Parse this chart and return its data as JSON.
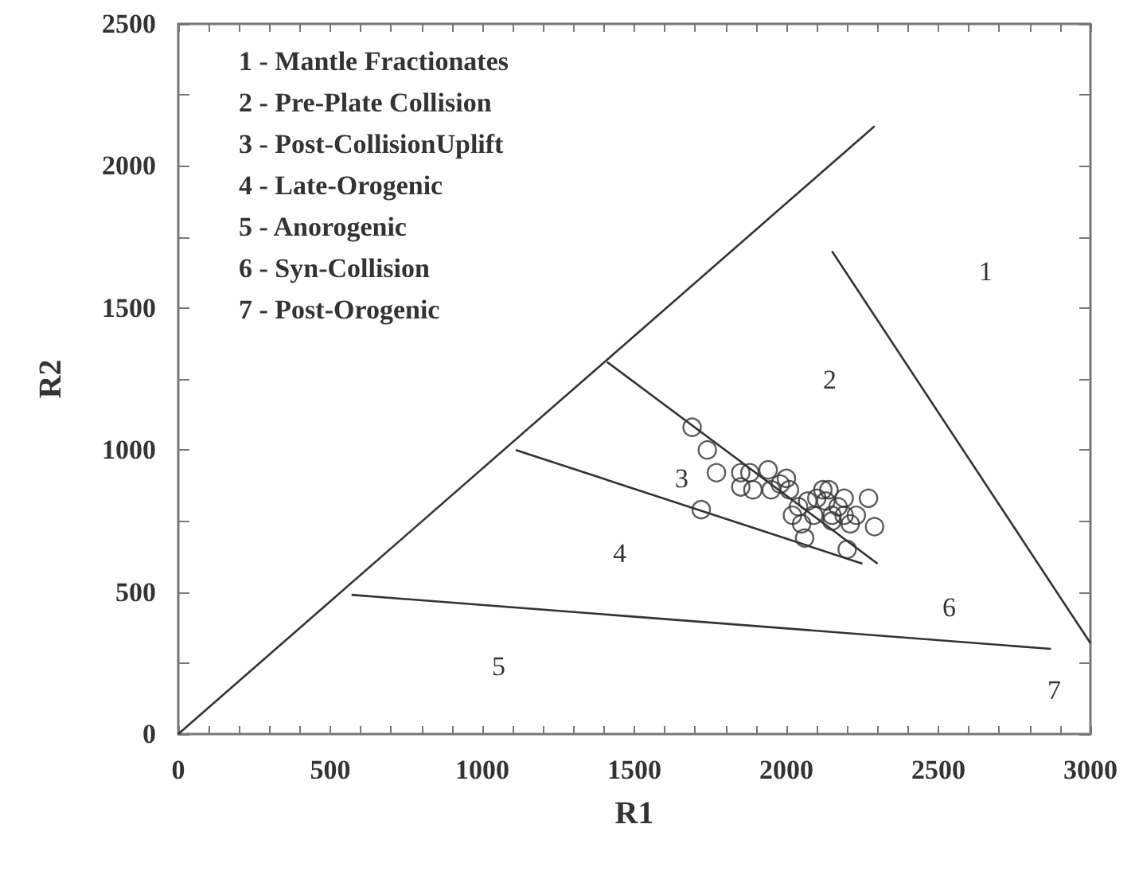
{
  "chart_data": {
    "type": "scatter",
    "xlabel": "R1",
    "ylabel": "R2",
    "xlim": [
      0,
      3000
    ],
    "ylim": [
      0,
      2500
    ],
    "xticks": [
      0,
      {
        "value": 100,
        "label": null
      },
      {
        "value": 200,
        "label": null
      },
      {
        "value": 300,
        "label": null
      },
      {
        "value": 400,
        "label": null
      },
      500,
      {
        "value": 600,
        "label": null
      },
      {
        "value": 700,
        "label": null
      },
      {
        "value": 800,
        "label": null
      },
      {
        "value": 900,
        "label": null
      },
      1000,
      {
        "value": 1100,
        "label": null
      },
      {
        "value": 1200,
        "label": null
      },
      {
        "value": 1300,
        "label": null
      },
      {
        "value": 1400,
        "label": null
      },
      1500,
      {
        "value": 1600,
        "label": null
      },
      {
        "value": 1700,
        "label": null
      },
      {
        "value": 1800,
        "label": null
      },
      {
        "value": 1900,
        "label": null
      },
      2000,
      {
        "value": 2100,
        "label": null
      },
      {
        "value": 2200,
        "label": null
      },
      {
        "value": 2300,
        "label": null
      },
      {
        "value": 2400,
        "label": null
      },
      2500,
      {
        "value": 2600,
        "label": null
      },
      {
        "value": 2700,
        "label": null
      },
      {
        "value": 2800,
        "label": null
      },
      {
        "value": 2900,
        "label": null
      },
      3000
    ],
    "yticks": [
      0,
      {
        "value": 250,
        "label": null
      },
      500,
      {
        "value": 750,
        "label": null
      },
      1000,
      {
        "value": 1250,
        "label": null
      },
      1500,
      {
        "value": 1750,
        "label": null
      },
      2000,
      {
        "value": 2250,
        "label": null
      },
      2500
    ],
    "marker": "circle",
    "series": [
      {
        "color": "#333333",
        "x": [
          1690,
          1740,
          1770,
          1850,
          1880,
          1940,
          2000,
          1850,
          1890,
          1950,
          1980,
          2010,
          1720,
          2020,
          2050,
          2060,
          2070,
          2100,
          2120,
          2140,
          2130,
          2150,
          2170,
          2190,
          2190,
          2210,
          2230,
          2270,
          2290,
          2200,
          2150,
          2040,
          2090
        ],
        "values": [
          1080,
          1000,
          920,
          920,
          920,
          930,
          900,
          870,
          860,
          860,
          880,
          860,
          790,
          770,
          740,
          690,
          820,
          830,
          860,
          860,
          820,
          770,
          800,
          830,
          770,
          740,
          770,
          830,
          730,
          650,
          750,
          800,
          770
        ]
      },
      {
        "type": "line",
        "color": "#333333",
        "marker": "none",
        "line_style": "solid",
        "x": [
          0,
          2290
        ],
        "values": [
          0,
          2140
        ]
      },
      {
        "type": "line",
        "color": "#333333",
        "marker": "none",
        "line_style": "solid",
        "x": [
          2150,
          3000
        ],
        "values": [
          1700,
          320
        ]
      },
      {
        "type": "line",
        "color": "#333333",
        "marker": "none",
        "line_style": "solid",
        "x": [
          1410,
          2300
        ],
        "values": [
          1310,
          600
        ]
      },
      {
        "type": "line",
        "color": "#333333",
        "marker": "none",
        "line_style": "solid",
        "x": [
          1110,
          2250
        ],
        "values": [
          1000,
          600
        ]
      },
      {
        "type": "line",
        "color": "#333333",
        "marker": "none",
        "line_style": "solid",
        "x": [
          570,
          2870
        ],
        "values": [
          490,
          300
        ]
      }
    ],
    "annotations": [
      "1 - Mantle Fractionates",
      "2 - Pre-Plate Collision",
      "3 - Post-CollisionUplift",
      "4 - Late-Orogenic",
      "5 - Anorogenic",
      "6 - Syn-Collision",
      "7 - Post-Orogenic",
      "1",
      "2",
      "3",
      "4",
      "5",
      "6",
      "7"
    ]
  }
}
